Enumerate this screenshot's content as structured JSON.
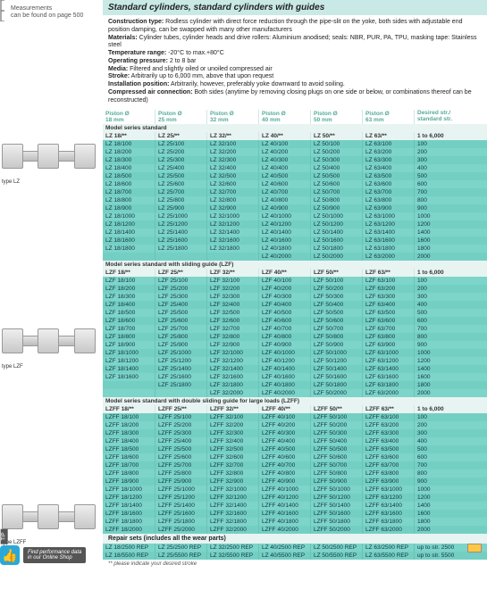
{
  "meta": {
    "measurements_note_l1": "Measurements",
    "measurements_note_l2": "can be found on page 500",
    "title": "Standard cylinders, standard cylinders with guides",
    "desc": [
      {
        "label": "Construction type:",
        "text": " Rodless cylinder with direct force reduction through the pipe-slit on the yoke, both sides with adjustable end position damping, can be swapped with many other manufacturers"
      },
      {
        "label": "Materials:",
        "text": " Cylinder tubes, cylinder heads and drive rollers: Aluminium anodised; seals: NBR, PUR, PA, TPU, masking tape: Stainless steel"
      },
      {
        "label": "Temperature range:",
        "text": " -20°C to max.+80°C"
      },
      {
        "label": "Operating pressure:",
        "text": " 2 to 8 bar"
      },
      {
        "label": "Media:",
        "text": " Filtered and slightly oiled or unoiled compressed air"
      },
      {
        "label": "Stroke:",
        "text": " Arbitrarily up to 6,000 mm, above that upon request"
      },
      {
        "label": "Installation position:",
        "text": " Arbitrarily, however, preferably yoke downward to avoid soiling."
      },
      {
        "label": "Compressed air connection:",
        "text": " Both sides (anytime by removing closing plugs on one side or below, or combinations thereof can be reconstructed)"
      }
    ]
  },
  "header": {
    "cols": [
      "Piston Ø\n18 mm",
      "Piston Ø\n25 mm",
      "Piston Ø\n32 mm",
      "Piston Ø\n40 mm",
      "Piston Ø\n50 mm",
      "Piston Ø\n63 mm"
    ],
    "last": "Desired str./\nstandard str."
  },
  "sections": [
    {
      "model_title": "Model series standard",
      "model_codes": [
        "LZ 18/**",
        "LZ 25/**",
        "LZ 32/**",
        "LZ 40/**",
        "LZ 50/**",
        "LZ 63/**"
      ],
      "stroke_range": "1 to 6,000",
      "strokes": [
        100,
        200,
        300,
        400,
        500,
        600,
        700,
        800,
        900,
        1000,
        1200,
        1400,
        1600,
        1800,
        2000
      ],
      "prefix": "LZ",
      "extra_cols": {}
    },
    {
      "model_title": "Model series standard with sliding guide (LZF)",
      "model_codes": [
        "LZF 18/**",
        "LZF 25/**",
        "LZF 32/**",
        "LZF 40/**",
        "LZF 50/**",
        "LZF 63/**"
      ],
      "stroke_range": "1 to 6,000",
      "strokes": [
        100,
        200,
        300,
        400,
        500,
        600,
        700,
        800,
        900,
        1000,
        1200,
        1400,
        1600,
        1800,
        2000
      ],
      "prefix": "LZF",
      "extra_cols": {}
    },
    {
      "model_title": "Model series standard with double sliding guide for large loads (LZFF)",
      "model_codes": [
        "LZFF 18/**",
        "LZFF 25/**",
        "LZFF 32/**",
        "LZFF 40/**",
        "LZFF 50/**",
        "LZFF 63/**"
      ],
      "stroke_range": "1 to 6,000",
      "strokes": [
        100,
        200,
        300,
        400,
        500,
        600,
        700,
        800,
        900,
        1000,
        1200,
        1400,
        1600,
        1800,
        2000
      ],
      "prefix": "LZFF",
      "extra_cols": {}
    }
  ],
  "diams": [
    18,
    25,
    32,
    40,
    50,
    63
  ],
  "cyl_labels": [
    "type LZ",
    "type LZF",
    "type LZFF"
  ],
  "repair": {
    "title": "Repair sets (includes all the wear parts)",
    "rows": [
      {
        "cells": [
          "LZ 18/2500 REP",
          "LZ 25/2500 REP",
          "LZ 32/2500 REP",
          "LZ 40/2500 REP",
          "LZ 50/2500 REP",
          "LZ 63/2500 REP"
        ],
        "note": "up to str. 2500"
      },
      {
        "cells": [
          "LZ 18/5500 REP",
          "LZ 25/5500 REP",
          "LZ 32/5500 REP",
          "LZ 40/5500 REP",
          "LZ 50/5500 REP",
          "LZ 63/5500 REP"
        ],
        "note": "up to str. 5500"
      }
    ]
  },
  "footnote": "** please indicate your desired stroke",
  "tip": {
    "rot": "TIP",
    "l1": "Find performance data",
    "l2": "in our Online Shop"
  }
}
